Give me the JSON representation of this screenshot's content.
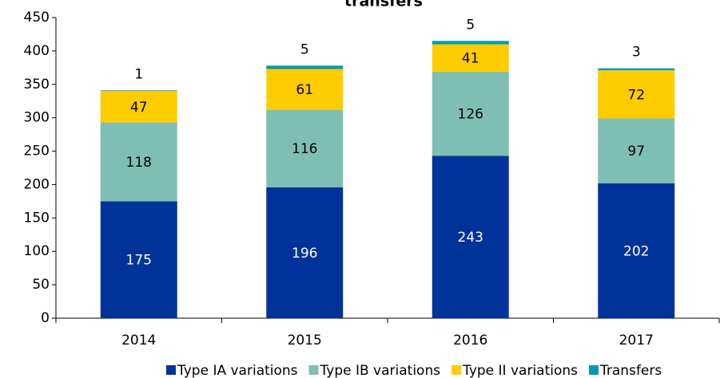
{
  "chart_data": {
    "type": "stacked_bar",
    "title": "transfers",
    "categories": [
      "2014",
      "2015",
      "2016",
      "2017"
    ],
    "series": [
      {
        "name": "Type IA variations",
        "color": "#003399",
        "label_color": "#ffffff",
        "values": [
          175,
          196,
          243,
          202
        ]
      },
      {
        "name": "Type IB variations",
        "color": "#7fbfb3",
        "label_color": "#000000",
        "values": [
          118,
          116,
          126,
          97
        ]
      },
      {
        "name": "Type II variations",
        "color": "#ffcc00",
        "label_color": "#000000",
        "values": [
          47,
          61,
          41,
          72
        ]
      },
      {
        "name": "Transfers",
        "color": "#0099b4",
        "label_color": "#000000",
        "values": [
          1,
          5,
          5,
          3
        ]
      }
    ],
    "ylim": [
      0,
      450
    ],
    "yticks": [
      0,
      50,
      100,
      150,
      200,
      250,
      300,
      350,
      400,
      450
    ],
    "grid": false,
    "legend": "bottom"
  }
}
